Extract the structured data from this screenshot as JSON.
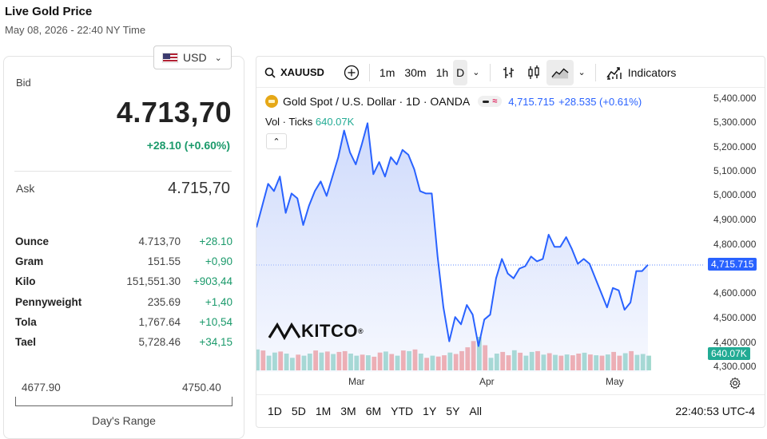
{
  "header": {
    "title": "Live Gold Price",
    "date": "May 08, 2026 - 22:40 NY Time"
  },
  "currency": {
    "selected": "USD",
    "flag_icon": "us-flag-icon"
  },
  "quote": {
    "bid_label": "Bid",
    "bid": "4.713,70",
    "bid_change": "+28.10 (+0.60%)",
    "ask_label": "Ask",
    "ask": "4.715,70"
  },
  "units": [
    {
      "name": "Ounce",
      "price": "4.713,70",
      "change": "+28.10"
    },
    {
      "name": "Gram",
      "price": "151.55",
      "change": "+0,90"
    },
    {
      "name": "Kilo",
      "price": "151,551.30",
      "change": "+903,44"
    },
    {
      "name": "Pennyweight",
      "price": "235.69",
      "change": "+1,40"
    },
    {
      "name": "Tola",
      "price": "1,767.64",
      "change": "+10,54"
    },
    {
      "name": "Tael",
      "price": "5,728.46",
      "change": "+34,15"
    }
  ],
  "day_range": {
    "low": "4677.90",
    "high": "4750.40",
    "label": "Day's Range"
  },
  "toolbar": {
    "symbol": "XAUUSD",
    "intervals": [
      "1m",
      "30m",
      "1h",
      "D"
    ],
    "active_interval": "D",
    "indicators_label": "Indicators"
  },
  "legend": {
    "title": "Gold Spot / U.S. Dollar · 1D · OANDA",
    "price": "4,715.715",
    "change": "+28.535 (+0.61%)",
    "vol_label": "Vol · Ticks",
    "vol_value": "640.07K"
  },
  "brand": {
    "logo_text": "KITCO",
    "reg": "®"
  },
  "price_tag": "4,715.715",
  "vol_tag": "640.07K",
  "bottom": {
    "ranges": [
      "1D",
      "5D",
      "1M",
      "3M",
      "6M",
      "YTD",
      "1Y",
      "5Y",
      "All"
    ],
    "clock": "22:40:53 UTC-4"
  },
  "colors": {
    "line": "#2962ff",
    "area": "#c9d6fb",
    "vol_up": "#9fd8cd",
    "vol_down": "#f4a6a6",
    "green": "#1b9a6b"
  },
  "chart_data": {
    "type": "area",
    "title": "Gold Spot / U.S. Dollar · 1D · OANDA",
    "y_ticks": [
      "5,400.000",
      "5,300.000",
      "5,200.000",
      "5,100.000",
      "5,000.000",
      "4,900.000",
      "4,800.000",
      "4,600.000",
      "4,500.000",
      "4,400.000",
      "4,300.000"
    ],
    "x_ticks": [
      "Mar",
      "Apr",
      "May"
    ],
    "ylim": [
      4280,
      5420
    ],
    "price": [
      4870,
      4960,
      5050,
      5020,
      5080,
      4930,
      5010,
      4990,
      4880,
      4960,
      5020,
      5060,
      5000,
      5080,
      5160,
      5270,
      5180,
      5130,
      5210,
      5300,
      5090,
      5140,
      5080,
      5160,
      5130,
      5190,
      5170,
      5110,
      5020,
      5010,
      5010,
      4750,
      4540,
      4400,
      4500,
      4470,
      4550,
      4510,
      4380,
      4490,
      4510,
      4660,
      4740,
      4680,
      4660,
      4700,
      4710,
      4750,
      4730,
      4740,
      4840,
      4790,
      4790,
      4830,
      4780,
      4720,
      4740,
      4720,
      4660,
      4600,
      4540,
      4620,
      4610,
      4530,
      4560,
      4690,
      4690,
      4716
    ],
    "volume": [
      100,
      95,
      70,
      85,
      90,
      80,
      60,
      75,
      70,
      80,
      95,
      85,
      90,
      78,
      88,
      92,
      80,
      70,
      75,
      72,
      65,
      85,
      90,
      78,
      70,
      95,
      92,
      100,
      80,
      60,
      70,
      66,
      72,
      85,
      78,
      92,
      110,
      140,
      160,
      120,
      60,
      80,
      88,
      72,
      96,
      84,
      70,
      88,
      92,
      75,
      82,
      74,
      70,
      76,
      72,
      80,
      84,
      76,
      72,
      70,
      76,
      88,
      70,
      82,
      92,
      74,
      78,
      70
    ],
    "volume_up": [
      true,
      false,
      true,
      true,
      false,
      true,
      true,
      false,
      true,
      true,
      false,
      true,
      false,
      true,
      false,
      false,
      true,
      true,
      false,
      true,
      false,
      false,
      true,
      false,
      true,
      false,
      true,
      false,
      true,
      false,
      true,
      false,
      false,
      true,
      false,
      false,
      false,
      false,
      true,
      false,
      true,
      true,
      false,
      false,
      true,
      false,
      true,
      true,
      false,
      true,
      false,
      true,
      false,
      true,
      false,
      false,
      true,
      false,
      true,
      false,
      true,
      false,
      false,
      true,
      false,
      true,
      true,
      true
    ]
  }
}
